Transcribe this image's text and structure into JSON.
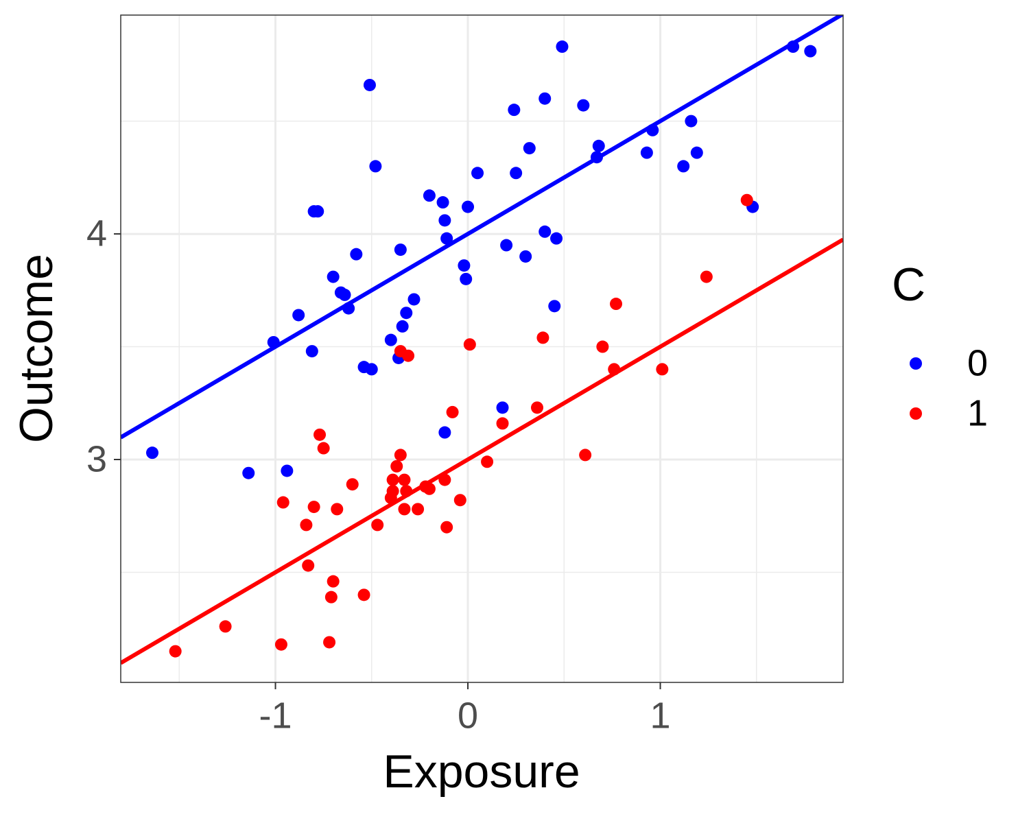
{
  "chart_data": {
    "type": "scatter",
    "x_label": "Exposure",
    "y_label": "Outcome",
    "legend_title": "C",
    "xlim": [
      -1.804,
      1.95
    ],
    "ylim": [
      2.012,
      4.97
    ],
    "xticks": [
      -1,
      0,
      1
    ],
    "yticks": [
      3,
      4
    ],
    "xminor": [
      -1.5,
      -0.5,
      0.5,
      1.5
    ],
    "yminor": [
      2.5,
      3.5,
      4.5
    ],
    "grid": true,
    "legend": "right",
    "series": [
      {
        "name": "0",
        "color": "#0000ff",
        "x": [
          -1.64,
          -1.14,
          -0.94,
          -1.01,
          -0.88,
          -0.81,
          -0.8,
          -0.78,
          -0.7,
          -0.66,
          -0.64,
          -0.62,
          -0.58,
          -0.54,
          -0.51,
          -0.5,
          -0.48,
          -0.4,
          -0.36,
          -0.35,
          -0.34,
          -0.32,
          -0.28,
          -0.2,
          -0.13,
          -0.12,
          -0.12,
          -0.11,
          -0.02,
          -0.01,
          0.0,
          0.05,
          0.18,
          0.2,
          0.24,
          0.25,
          0.3,
          0.32,
          0.4,
          0.4,
          0.45,
          0.46,
          0.49,
          0.6,
          0.67,
          0.68,
          0.93,
          0.96,
          1.12,
          1.16,
          1.19,
          1.48,
          1.69,
          1.78
        ],
        "values": [
          3.03,
          2.94,
          2.95,
          3.52,
          3.64,
          3.48,
          4.1,
          4.1,
          3.81,
          3.74,
          3.73,
          3.67,
          3.91,
          3.41,
          4.66,
          3.4,
          4.3,
          3.53,
          3.45,
          3.93,
          3.59,
          3.65,
          3.71,
          4.17,
          4.14,
          4.06,
          3.12,
          3.98,
          3.86,
          3.8,
          4.12,
          4.27,
          3.23,
          3.95,
          4.55,
          4.27,
          3.9,
          4.38,
          4.6,
          4.01,
          3.68,
          3.98,
          4.83,
          4.57,
          4.34,
          4.39,
          4.36,
          4.46,
          4.3,
          4.5,
          4.36,
          4.12,
          4.83,
          4.81
        ],
        "fit": {
          "x": [
            -1.804,
            1.95
          ],
          "y": [
            3.098,
            4.975
          ]
        }
      },
      {
        "name": "1",
        "color": "#ff0000",
        "x": [
          -1.52,
          -1.26,
          -0.97,
          -0.96,
          -0.84,
          -0.83,
          -0.8,
          -0.77,
          -0.75,
          -0.72,
          -0.71,
          -0.7,
          -0.68,
          -0.6,
          -0.54,
          -0.47,
          -0.4,
          -0.39,
          -0.39,
          -0.37,
          -0.35,
          -0.35,
          -0.33,
          -0.33,
          -0.32,
          -0.31,
          -0.26,
          -0.22,
          -0.2,
          -0.12,
          -0.11,
          -0.08,
          -0.04,
          0.01,
          0.1,
          0.18,
          0.36,
          0.39,
          0.61,
          0.7,
          0.76,
          0.77,
          1.01,
          1.24,
          1.45
        ],
        "values": [
          2.15,
          2.26,
          2.18,
          2.81,
          2.71,
          2.53,
          2.79,
          3.11,
          3.05,
          2.19,
          2.39,
          2.46,
          2.78,
          2.89,
          2.4,
          2.71,
          2.83,
          2.91,
          2.86,
          2.97,
          3.02,
          3.48,
          2.91,
          2.78,
          2.86,
          3.46,
          2.78,
          2.88,
          2.87,
          2.91,
          2.7,
          3.21,
          2.82,
          3.51,
          2.99,
          3.16,
          3.23,
          3.54,
          3.02,
          3.5,
          3.4,
          3.69,
          3.4,
          3.81,
          4.15
        ],
        "fit": {
          "x": [
            -1.804,
            1.95
          ],
          "y": [
            2.098,
            3.975
          ]
        }
      }
    ]
  }
}
